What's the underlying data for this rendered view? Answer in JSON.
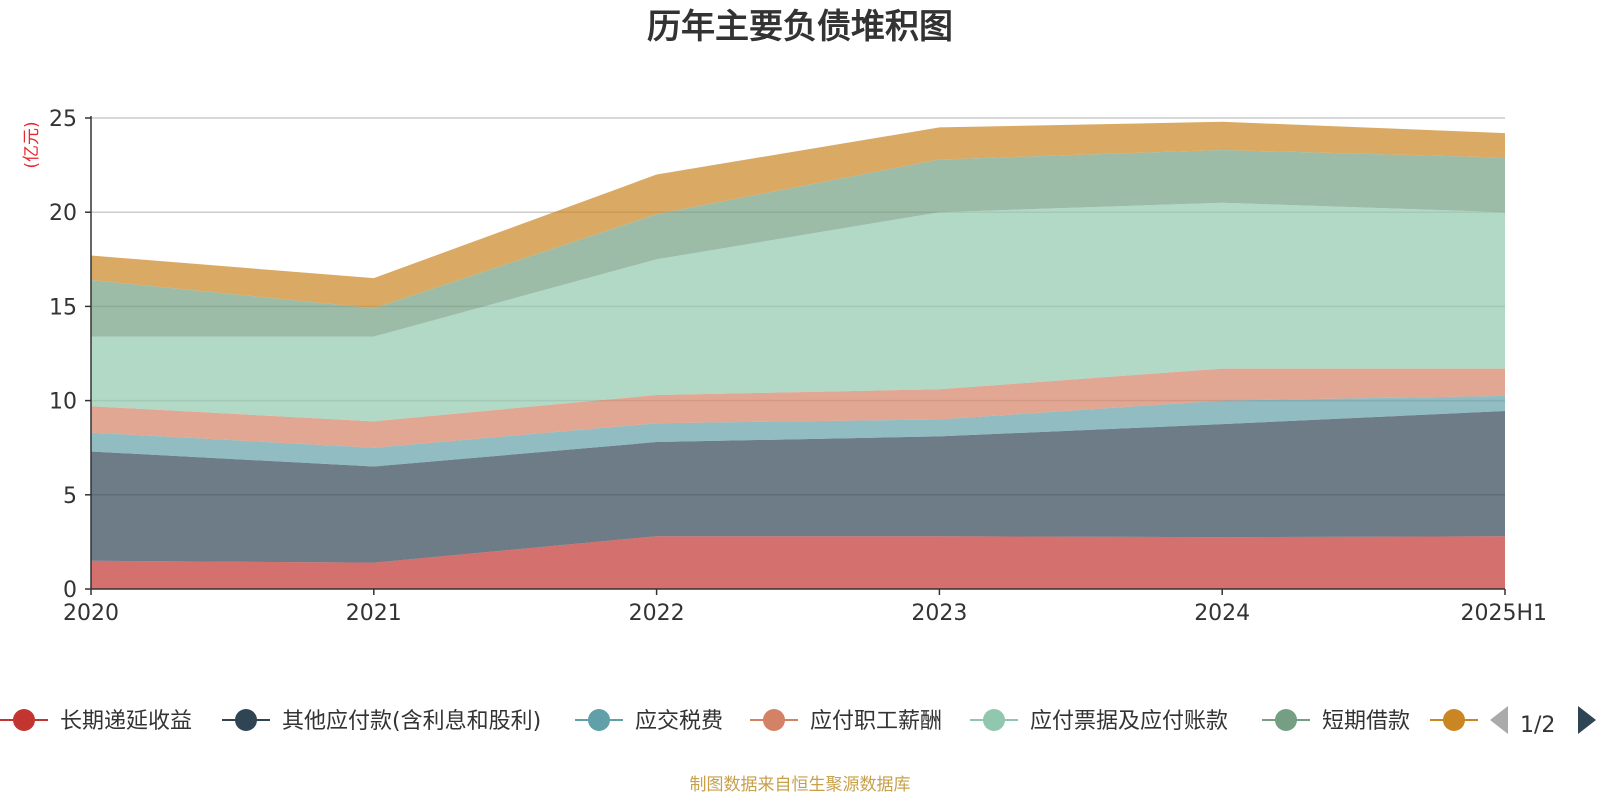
{
  "chart_data": {
    "type": "area",
    "stacked": true,
    "title": "历年主要负债堆积图",
    "unit_label": "(亿元)",
    "categories": [
      "2020",
      "2021",
      "2022",
      "2023",
      "2024",
      "2025H1"
    ],
    "ylim": [
      0,
      25
    ],
    "yticks": [
      "0",
      "5",
      "10",
      "15",
      "20",
      "25"
    ],
    "grid": true,
    "legend_position": "bottom",
    "series": [
      {
        "name": "长期递延收益",
        "color": "#c23531",
        "values": [
          1.5,
          1.4,
          2.8,
          2.8,
          2.75,
          2.8
        ]
      },
      {
        "name": "其他应付款(含利息和股利)",
        "color": "#2f4554",
        "values": [
          5.8,
          5.1,
          5.0,
          5.3,
          6.0,
          6.65
        ]
      },
      {
        "name": "应交税费",
        "color": "#61a0a8",
        "values": [
          1.0,
          1.0,
          1.0,
          0.9,
          1.25,
          0.8
        ]
      },
      {
        "name": "应付职工薪酬",
        "color": "#d48265",
        "values": [
          1.4,
          1.4,
          1.5,
          1.6,
          1.7,
          1.45
        ]
      },
      {
        "name": "应付票据及应付账款",
        "color": "#91c7ae",
        "values": [
          3.7,
          4.5,
          7.2,
          9.4,
          8.8,
          8.3
        ]
      },
      {
        "name": "短期借款",
        "color": "#749f83",
        "values": [
          3.0,
          1.5,
          2.4,
          2.8,
          2.8,
          2.9
        ]
      },
      {
        "name": "",
        "color": "#ca8622",
        "values": [
          1.3,
          1.6,
          2.1,
          1.7,
          1.5,
          1.3
        ]
      }
    ]
  },
  "legend": {
    "pager_text": "1/2"
  },
  "source_text": "制图数据来自恒生聚源数据库"
}
